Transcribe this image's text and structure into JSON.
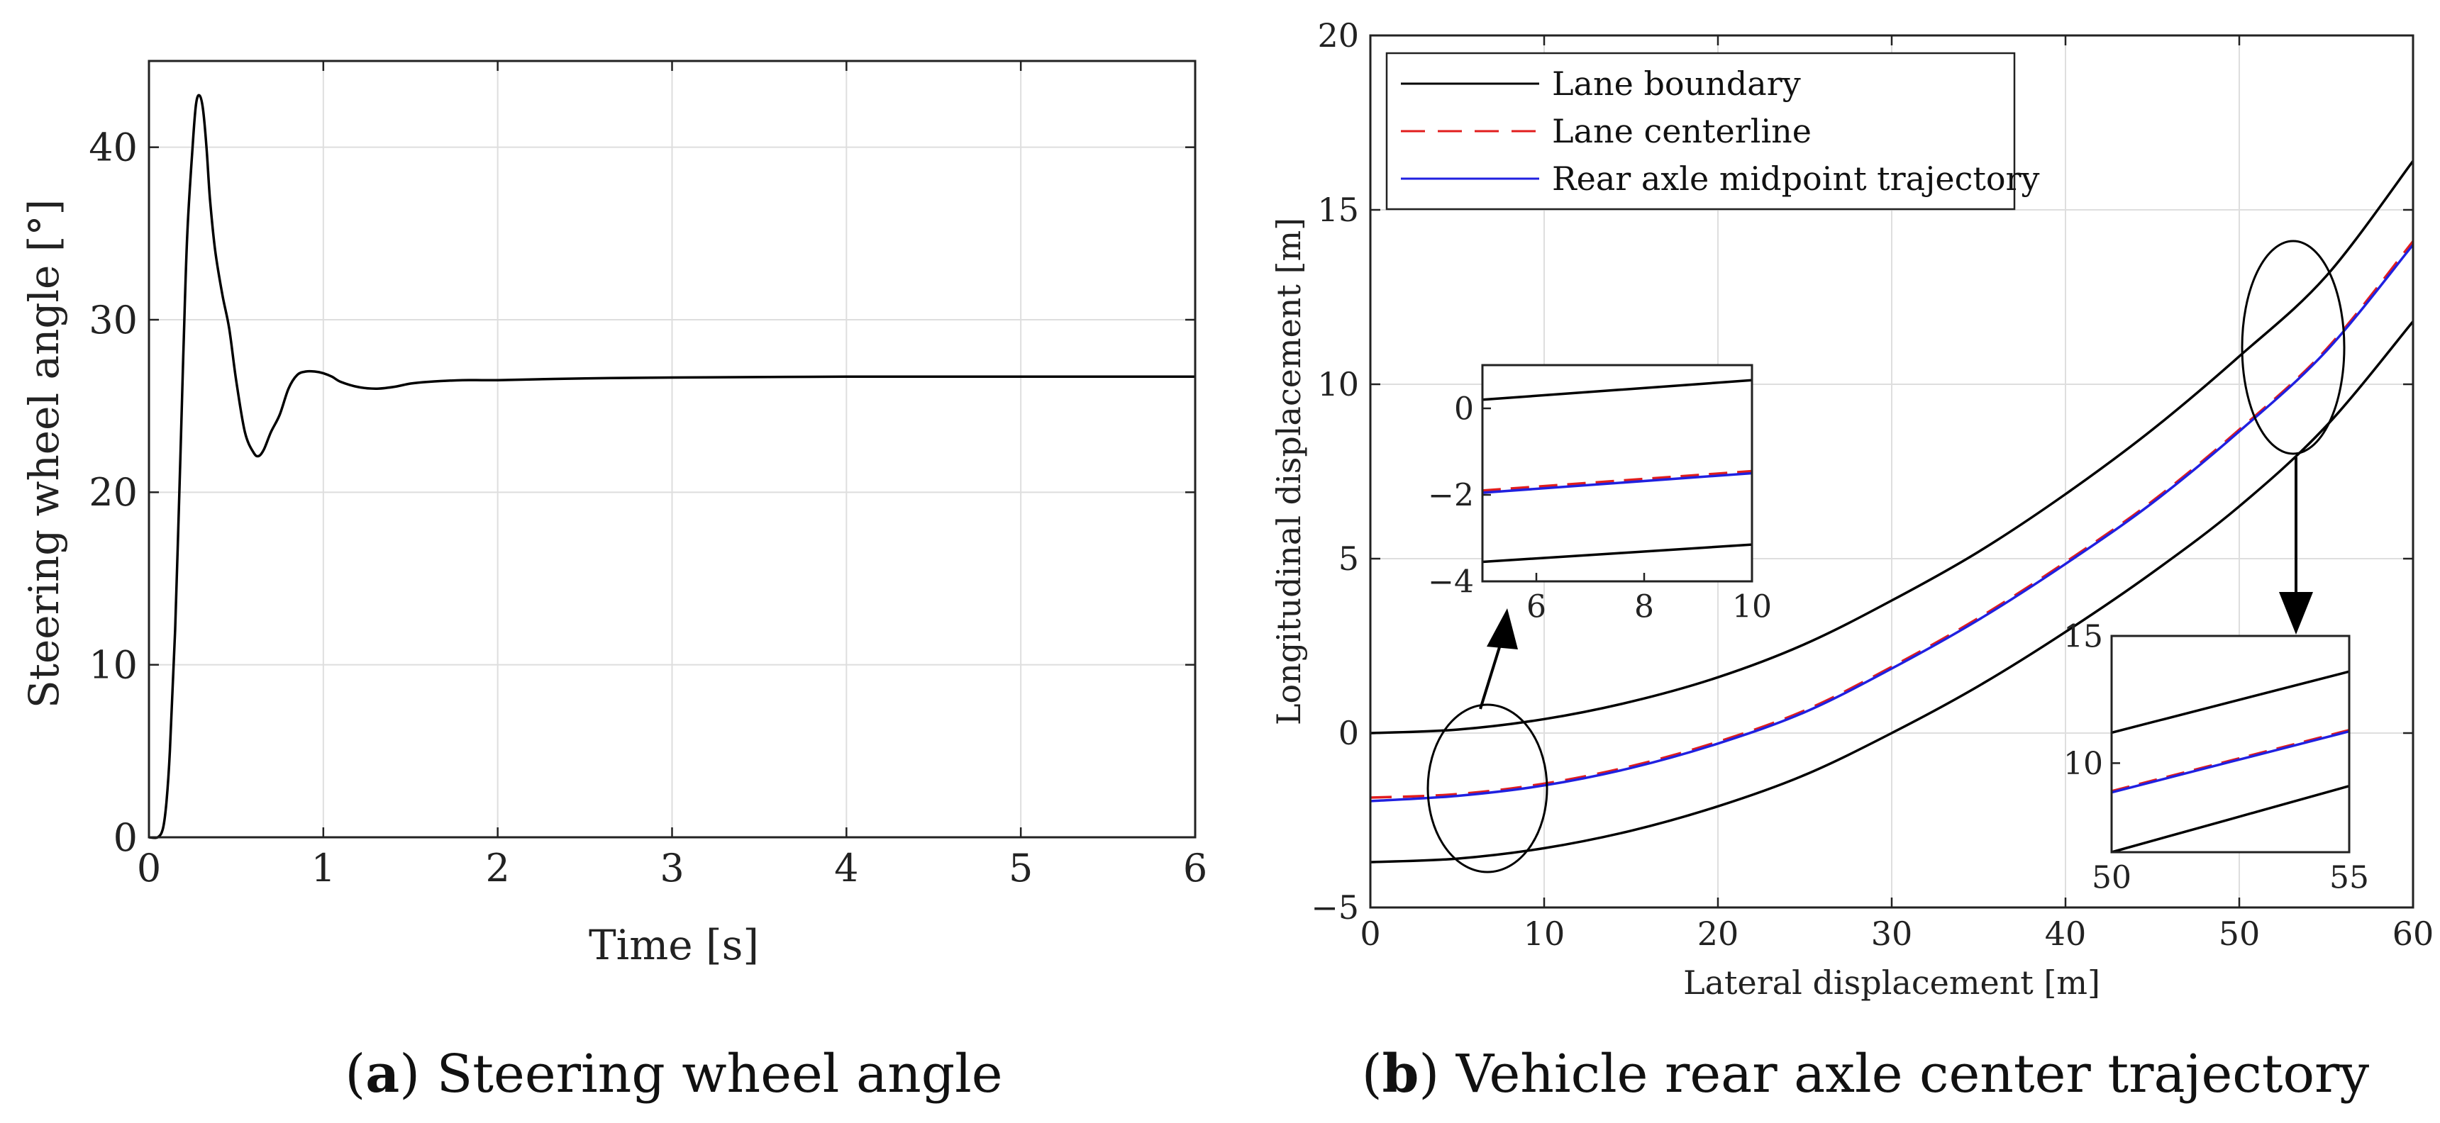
{
  "chart_data": [
    {
      "id": "a",
      "type": "line",
      "caption_letter": "a",
      "caption_text": "Steering wheel angle",
      "xlabel": "Time [s]",
      "ylabel": "Steering wheel angle [°]",
      "xlim": [
        0,
        6
      ],
      "ylim": [
        0,
        45
      ],
      "xticks": [
        0,
        1,
        2,
        3,
        4,
        5,
        6
      ],
      "yticks": [
        0,
        10,
        20,
        30,
        40
      ],
      "grid": true,
      "series": [
        {
          "name": "Steering wheel angle",
          "color": "#000000",
          "x": [
            0,
            0.05,
            0.08,
            0.1,
            0.12,
            0.15,
            0.18,
            0.2,
            0.22,
            0.25,
            0.27,
            0.29,
            0.31,
            0.33,
            0.35,
            0.38,
            0.42,
            0.46,
            0.5,
            0.55,
            0.6,
            0.63,
            0.66,
            0.7,
            0.75,
            0.8,
            0.85,
            0.9,
            0.95,
            1.0,
            1.05,
            1.1,
            1.2,
            1.3,
            1.4,
            1.5,
            1.6,
            1.8,
            2.0,
            2.5,
            3.0,
            4.0,
            5.0,
            6.0
          ],
          "values": [
            0,
            0,
            0.5,
            2,
            5,
            12,
            22,
            29,
            35,
            40,
            42.5,
            43,
            42.2,
            40,
            37,
            34,
            31.5,
            29.5,
            26.5,
            23.5,
            22.3,
            22.1,
            22.5,
            23.5,
            24.5,
            26,
            26.8,
            27.0,
            27.0,
            26.9,
            26.7,
            26.4,
            26.1,
            26.0,
            26.1,
            26.3,
            26.4,
            26.5,
            26.5,
            26.6,
            26.65,
            26.7,
            26.7,
            26.7
          ]
        }
      ]
    },
    {
      "id": "b",
      "type": "line",
      "caption_letter": "b",
      "caption_text": "Vehicle rear axle center trajectory",
      "xlabel": "Lateral displacement [m]",
      "ylabel": "Longitudinal displacement [m]",
      "xlim": [
        0,
        60
      ],
      "ylim": [
        -5,
        20
      ],
      "xticks": [
        0,
        10,
        20,
        30,
        40,
        50,
        60
      ],
      "yticks": [
        -5,
        0,
        5,
        10,
        15,
        20
      ],
      "xtick_labels": [
        "0",
        "10",
        "20",
        "30",
        "40",
        "50",
        "60"
      ],
      "ytick_labels": [
        "−5",
        "0",
        "5",
        "10",
        "15",
        "20"
      ],
      "grid": true,
      "legend_position": "top-left",
      "series": [
        {
          "name": "Lane boundary",
          "style": "solid",
          "color": "#000000",
          "x": [
            0,
            5,
            10,
            15,
            20,
            25,
            30,
            35,
            40,
            45,
            50,
            55,
            60
          ],
          "values": [
            0.0,
            0.1,
            0.4,
            0.9,
            1.6,
            2.55,
            3.8,
            5.2,
            6.85,
            8.7,
            10.8,
            13.1,
            16.4
          ]
        },
        {
          "name": "Lane boundary (lower)",
          "style": "solid",
          "color": "#000000",
          "x": [
            0,
            5,
            10,
            15,
            20,
            25,
            30,
            35,
            40,
            45,
            50,
            55,
            60
          ],
          "values": [
            -3.7,
            -3.6,
            -3.3,
            -2.8,
            -2.1,
            -1.2,
            0.0,
            1.35,
            2.9,
            4.6,
            6.5,
            8.8,
            11.8
          ]
        },
        {
          "name": "Lane centerline",
          "style": "dashed",
          "color": "#e11d1d",
          "x": [
            0,
            5,
            10,
            15,
            20,
            25,
            30,
            35,
            40,
            45,
            50,
            55,
            60
          ],
          "values": [
            -1.85,
            -1.75,
            -1.45,
            -0.95,
            -0.25,
            0.65,
            1.9,
            3.3,
            4.9,
            6.65,
            8.7,
            11.0,
            14.1
          ]
        },
        {
          "name": "Rear axle midpoint trajectory",
          "style": "solid",
          "color": "#2020e0",
          "x": [
            0,
            5,
            10,
            15,
            20,
            25,
            30,
            35,
            40,
            45,
            50,
            55,
            60
          ],
          "values": [
            -1.95,
            -1.8,
            -1.5,
            -1.0,
            -0.3,
            0.6,
            1.85,
            3.25,
            4.85,
            6.6,
            8.65,
            10.95,
            14.0
          ]
        }
      ],
      "legend": [
        "Lane boundary",
        "Lane centerline",
        "Rear axle midpoint trajectory"
      ],
      "insets": [
        {
          "id": "inset-left",
          "xlim": [
            5,
            10
          ],
          "ylim": [
            -4,
            1
          ],
          "xticks": [
            6,
            8,
            10
          ],
          "yticks": [
            0,
            -2,
            -4
          ],
          "xtick_labels": [
            "6",
            "8",
            "10"
          ],
          "ytick_labels": [
            "0",
            "−2",
            "−4"
          ],
          "series": [
            {
              "name": "Lane boundary",
              "color": "#000000",
              "style": "solid",
              "x": [
                5,
                10
              ],
              "values": [
                0.2,
                0.65
              ]
            },
            {
              "name": "Lane boundary (lower)",
              "color": "#000000",
              "style": "solid",
              "x": [
                5,
                10
              ],
              "values": [
                -3.55,
                -3.15
              ]
            },
            {
              "name": "Lane centerline",
              "color": "#e11d1d",
              "style": "dashed",
              "x": [
                5,
                10
              ],
              "values": [
                -1.9,
                -1.45
              ]
            },
            {
              "name": "Rear axle midpoint trajectory",
              "color": "#2020e0",
              "style": "solid",
              "x": [
                5,
                10
              ],
              "values": [
                -1.95,
                -1.5
              ]
            }
          ]
        },
        {
          "id": "inset-right",
          "xlim": [
            50,
            55
          ],
          "ylim": [
            6.5,
            15
          ],
          "xticks": [
            50,
            55
          ],
          "yticks": [
            10,
            15
          ],
          "xtick_labels": [
            "50",
            "55"
          ],
          "ytick_labels": [
            "10",
            "15"
          ],
          "series": [
            {
              "name": "Lane boundary",
              "color": "#000000",
              "style": "solid",
              "x": [
                50,
                55
              ],
              "values": [
                11.2,
                13.6
              ]
            },
            {
              "name": "Lane boundary (lower)",
              "color": "#000000",
              "style": "solid",
              "x": [
                50,
                55
              ],
              "values": [
                6.5,
                9.1
              ]
            },
            {
              "name": "Lane centerline",
              "color": "#e11d1d",
              "style": "dashed",
              "x": [
                50,
                55
              ],
              "values": [
                8.9,
                11.3
              ]
            },
            {
              "name": "Rear axle midpoint trajectory",
              "color": "#2020e0",
              "style": "solid",
              "x": [
                50,
                55
              ],
              "values": [
                8.85,
                11.25
              ]
            }
          ]
        }
      ]
    }
  ]
}
